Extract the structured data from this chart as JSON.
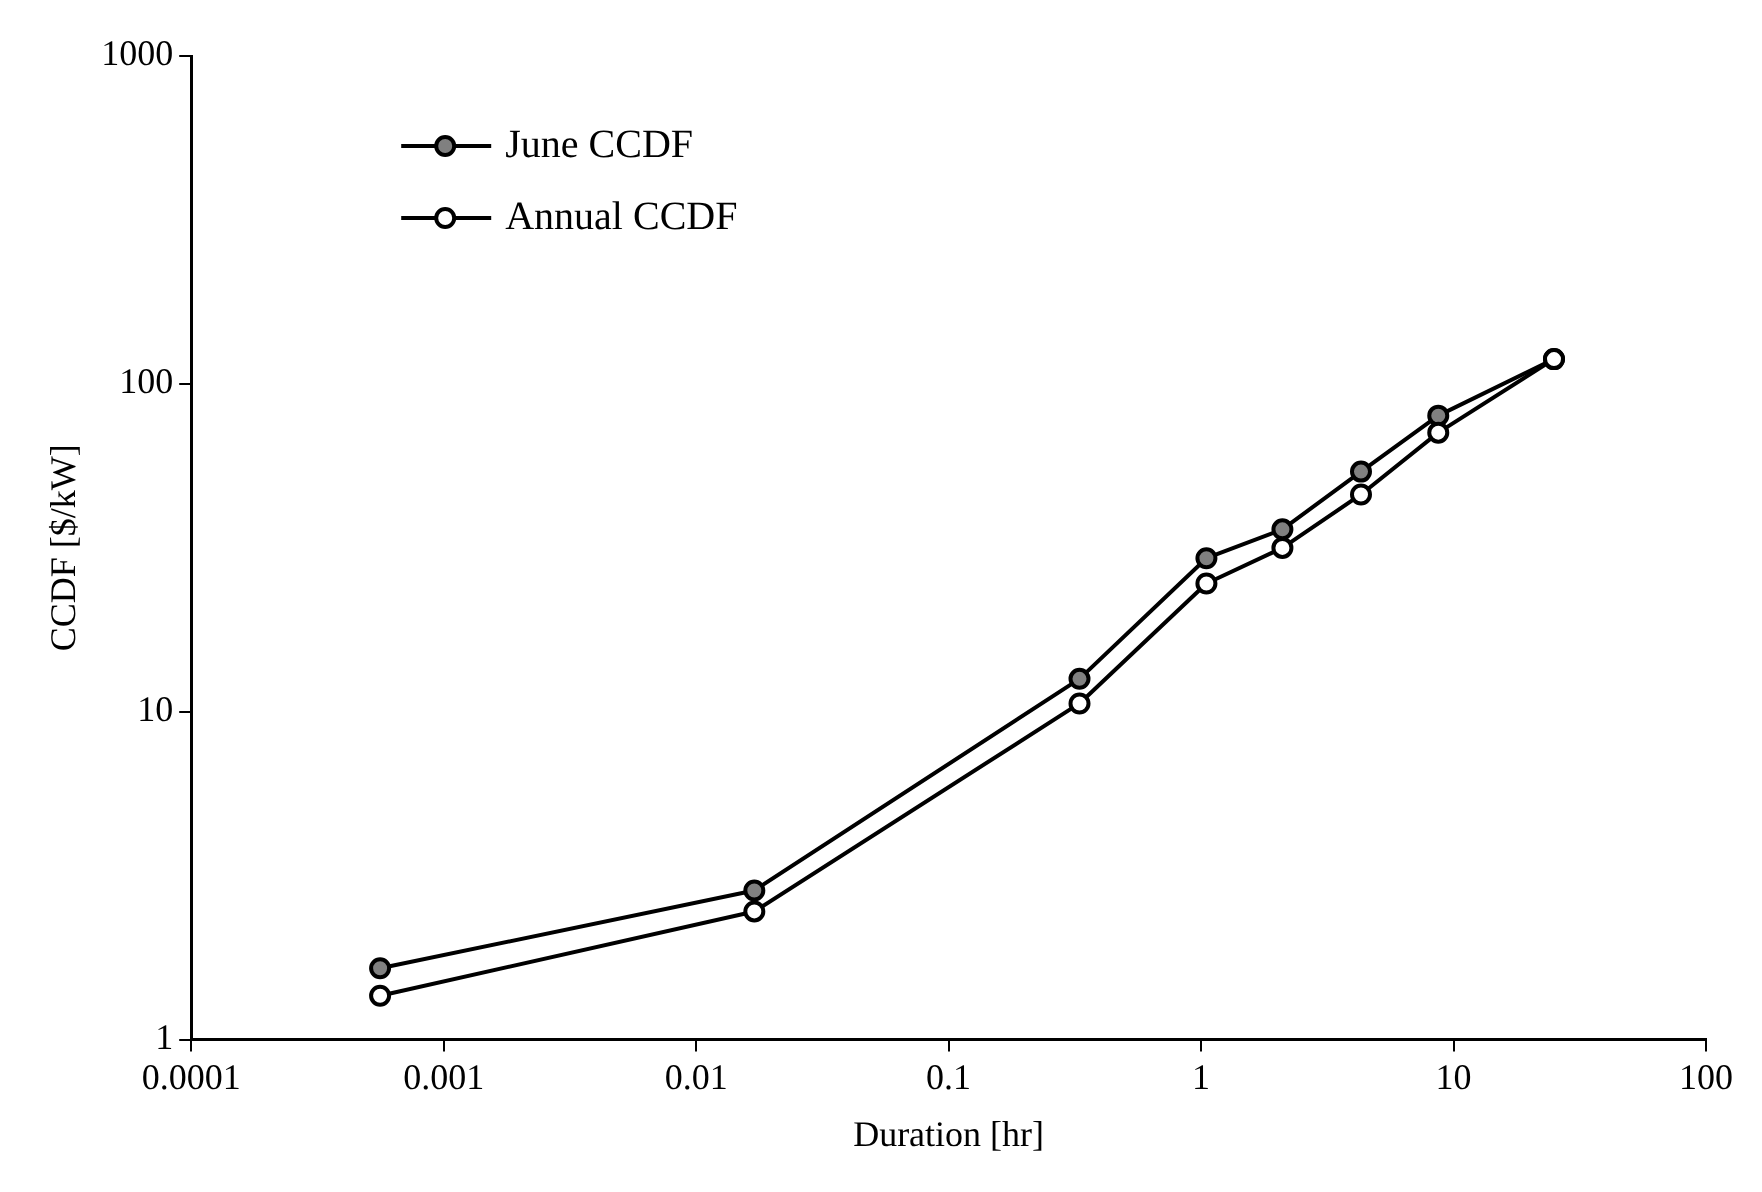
{
  "chart_data": {
    "type": "line",
    "xlabel": "Duration [hr]",
    "ylabel": "CCDF [$/kW]",
    "log": "xy",
    "grid": false,
    "legend": "top left",
    "marker": "circle",
    "line_style": "solid",
    "xlim": [
      0.0001,
      100
    ],
    "xticks": [
      0.0001,
      0.001,
      0.01,
      0.1,
      1,
      10,
      100
    ],
    "ylim": [
      1,
      1000
    ],
    "yticks": [
      1,
      10,
      100,
      1000
    ],
    "x": [
      0.00056,
      0.017,
      0.33,
      1.05,
      2.1,
      4.3,
      8.7,
      25
    ],
    "series": [
      {
        "name": "June CCDF",
        "color": "#808080",
        "values": [
          1.65,
          2.85,
          12.6,
          29.4,
          36,
          54,
          80,
          119
        ]
      },
      {
        "name": "Annual CCDF",
        "color": "#ffffff",
        "values": [
          1.36,
          2.46,
          10.6,
          24.6,
          31.6,
          46,
          71,
          119
        ]
      }
    ]
  }
}
